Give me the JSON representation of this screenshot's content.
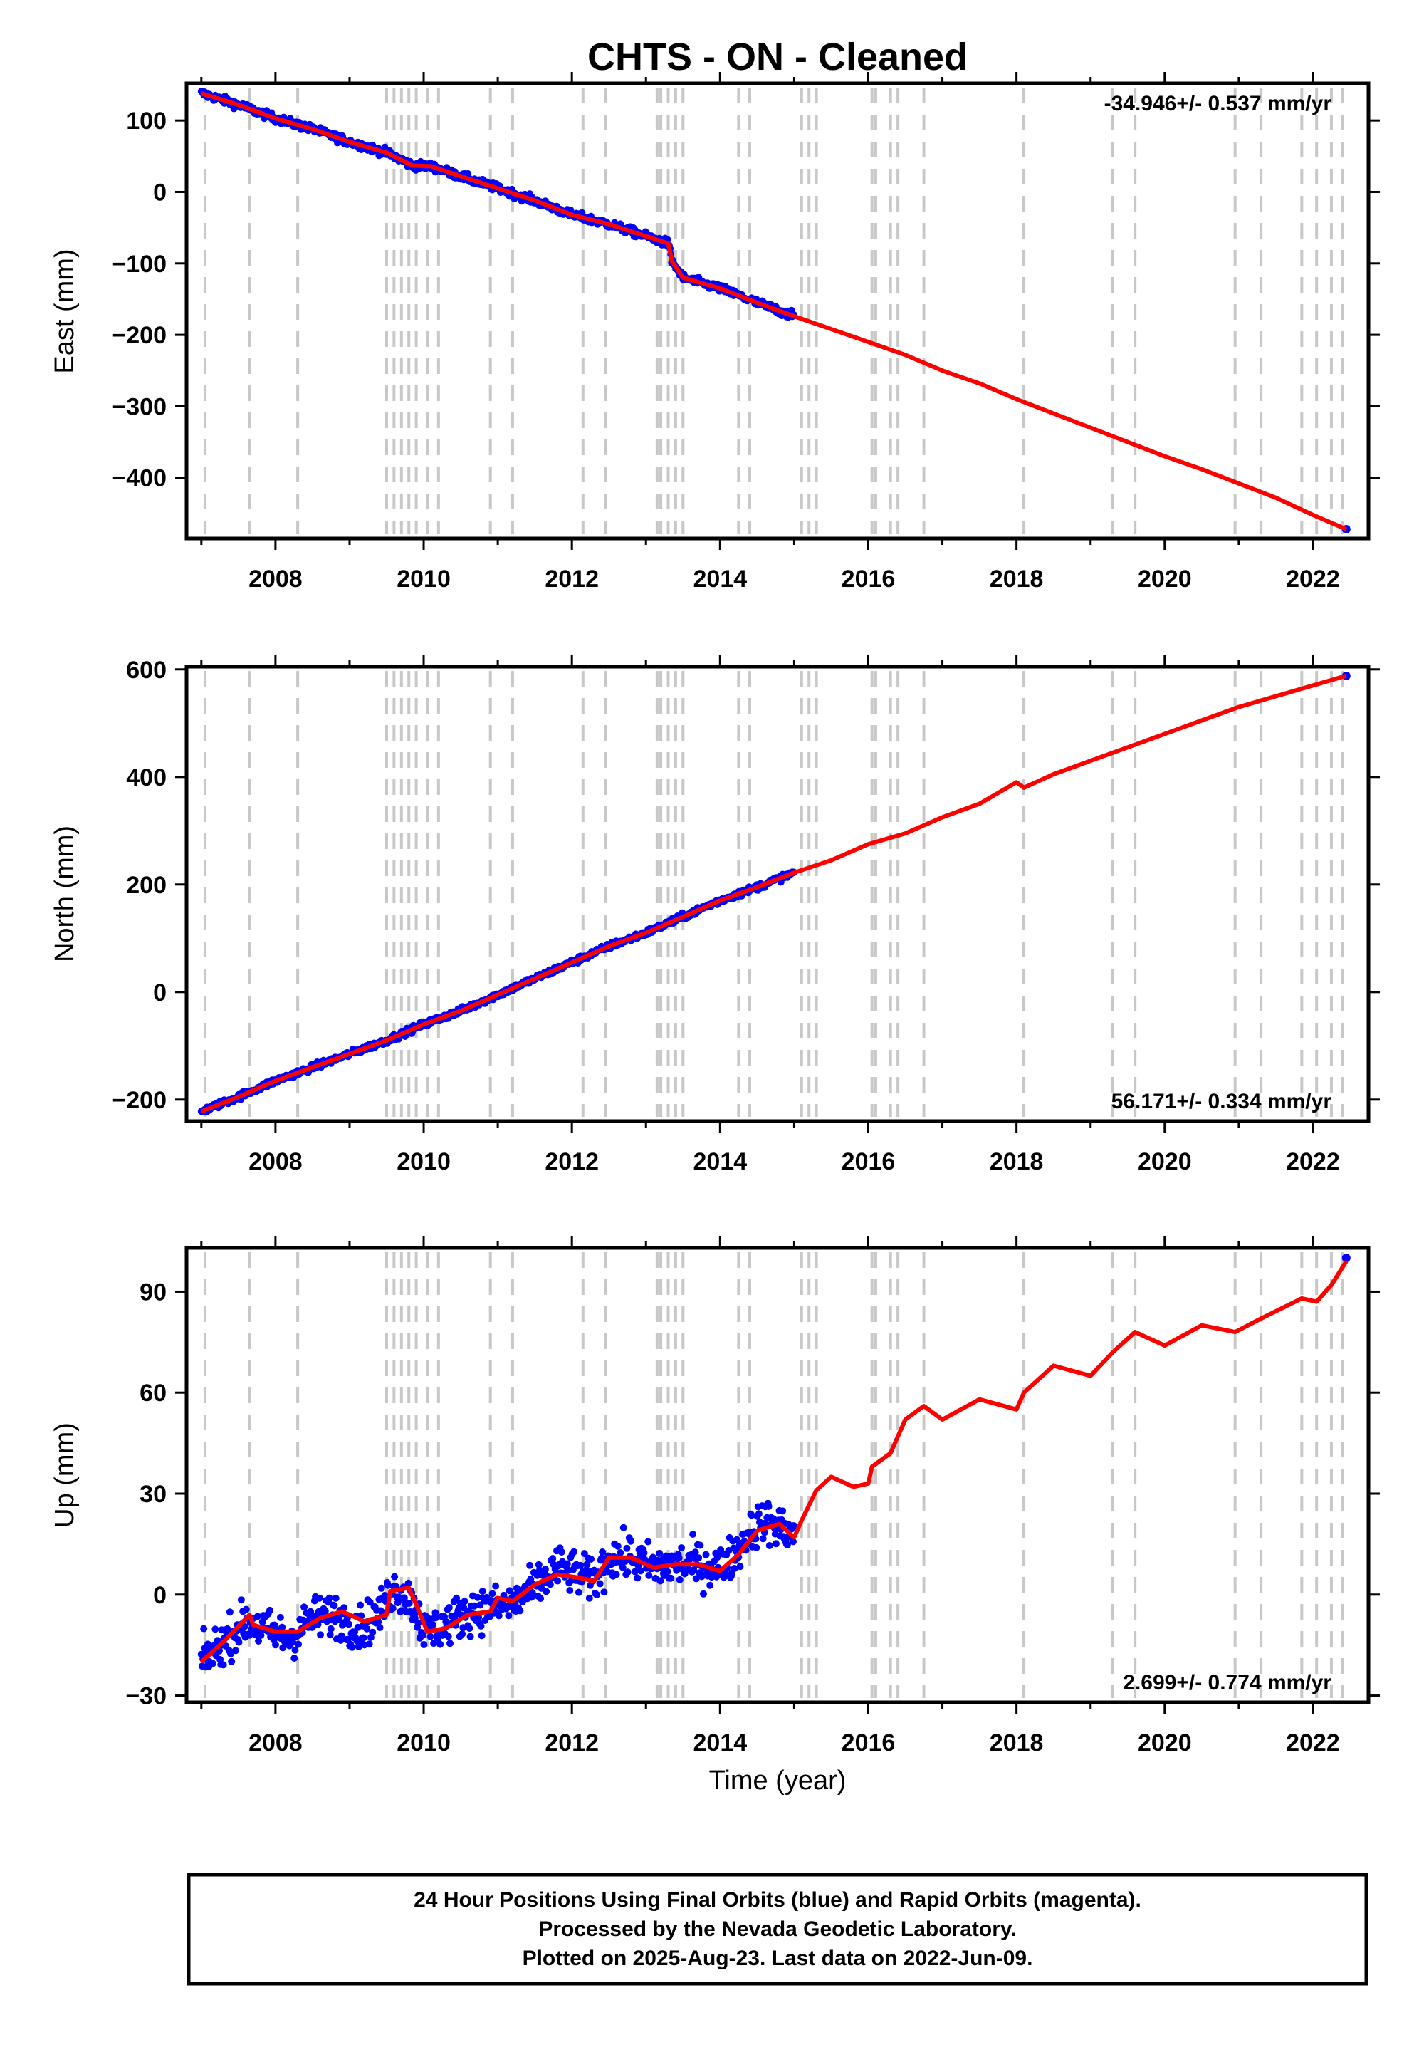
{
  "chart_title": "CHTS  - ON - Cleaned",
  "xlabel": "Time (year)",
  "caption": [
    "24 Hour Positions Using Final Orbits (blue) and Rapid Orbits (magenta).",
    "Processed by the Nevada Geodetic Laboratory.",
    "Plotted on 2025-Aug-23. Last data on 2022-Jun-09."
  ],
  "colors": {
    "final_orbits": "#0000ff",
    "model": "#ff0000",
    "steps": "#c8c8c8",
    "axes": "#000000"
  },
  "chart_data": [
    {
      "type": "scatter",
      "name": "east",
      "ylabel": "East (mm)",
      "rate": "-34.946+/- 0.537 mm/yr",
      "rate_position": "top-right",
      "xlim": [
        2006.8,
        2022.75
      ],
      "ylim": [
        -485,
        152
      ],
      "x_ticks": [
        2008,
        2010,
        2012,
        2014,
        2016,
        2018,
        2020,
        2022
      ],
      "y_ticks": [
        100,
        0,
        -100,
        -200,
        -300,
        -400
      ],
      "y_tick_labels": [
        "100",
        "0",
        "−100",
        "−200",
        "−300",
        "−400"
      ],
      "step_epochs": [
        2007.05,
        2007.65,
        2008.3,
        2009.5,
        2009.6,
        2009.7,
        2009.8,
        2009.9,
        2010.05,
        2010.2,
        2010.9,
        2011.2,
        2012.15,
        2012.45,
        2013.15,
        2013.2,
        2013.3,
        2013.4,
        2013.5,
        2014.25,
        2014.4,
        2015.1,
        2015.2,
        2015.3,
        2016.05,
        2016.1,
        2016.3,
        2016.4,
        2016.75,
        2018.1,
        2019.3,
        2019.6,
        2020.95,
        2021.3,
        2021.85,
        2022.05,
        2022.25,
        2022.4
      ],
      "series": [
        {
          "name": "daily",
          "x": [
            2007.0,
            2007.5,
            2008.0,
            2008.5,
            2009.0,
            2009.5,
            2009.85,
            2010.1,
            2010.5,
            2011.0,
            2011.5,
            2012.0,
            2012.5,
            2013.0,
            2013.3,
            2013.35,
            2013.5,
            2014.0,
            2014.5,
            2015.0,
            2022.45
          ],
          "y": [
            138,
            122,
            103,
            88,
            70,
            55,
            37,
            36,
            22,
            5,
            -12,
            -32,
            -45,
            -62,
            -72,
            -97,
            -120,
            -135,
            -155,
            -174,
            -472
          ]
        },
        {
          "name": "model",
          "x": [
            2007.0,
            2007.5,
            2008.0,
            2008.5,
            2009.0,
            2009.5,
            2009.85,
            2010.1,
            2010.5,
            2011.0,
            2011.5,
            2012.0,
            2012.5,
            2013.0,
            2013.3,
            2013.35,
            2013.5,
            2014.0,
            2014.5,
            2015.0,
            2015.5,
            2016.0,
            2016.5,
            2017.0,
            2017.5,
            2018.0,
            2018.5,
            2019.0,
            2019.5,
            2020.0,
            2020.5,
            2021.0,
            2021.5,
            2022.0,
            2022.45
          ],
          "y": [
            138,
            122,
            103,
            88,
            70,
            55,
            37,
            36,
            22,
            5,
            -12,
            -32,
            -45,
            -62,
            -72,
            -97,
            -120,
            -135,
            -155,
            -174,
            -192,
            -210,
            -228,
            -250,
            -268,
            -290,
            -310,
            -330,
            -350,
            -370,
            -388,
            -408,
            -428,
            -452,
            -472
          ]
        }
      ]
    },
    {
      "type": "scatter",
      "name": "north",
      "ylabel": "North (mm)",
      "rate": "56.171+/- 0.334 mm/yr",
      "rate_position": "bottom-right",
      "xlim": [
        2006.8,
        2022.75
      ],
      "ylim": [
        -240,
        605
      ],
      "x_ticks": [
        2008,
        2010,
        2012,
        2014,
        2016,
        2018,
        2020,
        2022
      ],
      "y_ticks": [
        600,
        400,
        200,
        0,
        -200
      ],
      "y_tick_labels": [
        "600",
        "400",
        "200",
        "0",
        "−200"
      ],
      "step_epochs": [
        2007.05,
        2007.65,
        2008.3,
        2009.5,
        2009.6,
        2009.7,
        2009.8,
        2009.9,
        2010.05,
        2010.2,
        2010.9,
        2011.2,
        2012.15,
        2012.45,
        2013.15,
        2013.2,
        2013.3,
        2013.4,
        2013.5,
        2014.25,
        2014.4,
        2015.1,
        2015.2,
        2015.3,
        2016.05,
        2016.1,
        2016.3,
        2016.4,
        2016.75,
        2018.1,
        2019.3,
        2019.6,
        2020.95,
        2021.3,
        2021.85,
        2022.05,
        2022.25,
        2022.4
      ],
      "series": [
        {
          "name": "daily",
          "x": [
            2007.0,
            2007.5,
            2008.0,
            2008.5,
            2009.0,
            2009.5,
            2010.0,
            2010.5,
            2011.0,
            2011.5,
            2012.0,
            2012.5,
            2013.0,
            2013.5,
            2014.0,
            2014.5,
            2015.0,
            2022.45
          ],
          "y": [
            -222,
            -195,
            -165,
            -140,
            -115,
            -90,
            -60,
            -35,
            -5,
            25,
            55,
            85,
            110,
            140,
            170,
            195,
            222,
            588
          ]
        },
        {
          "name": "model",
          "x": [
            2007.0,
            2007.5,
            2008.0,
            2008.5,
            2009.0,
            2009.5,
            2010.0,
            2010.5,
            2011.0,
            2011.5,
            2012.0,
            2012.5,
            2013.0,
            2013.5,
            2014.0,
            2014.5,
            2015.0,
            2015.5,
            2016.0,
            2016.5,
            2017.0,
            2017.5,
            2018.0,
            2018.1,
            2018.5,
            2019.0,
            2019.5,
            2020.0,
            2020.5,
            2021.0,
            2021.5,
            2022.0,
            2022.45
          ],
          "y": [
            -222,
            -195,
            -165,
            -140,
            -115,
            -90,
            -60,
            -35,
            -5,
            25,
            55,
            85,
            110,
            140,
            170,
            195,
            222,
            245,
            275,
            295,
            325,
            350,
            390,
            380,
            405,
            430,
            455,
            480,
            505,
            530,
            550,
            570,
            588
          ]
        }
      ]
    },
    {
      "type": "scatter",
      "name": "up",
      "ylabel": "Up (mm)",
      "rate": "2.699+/- 0.774 mm/yr",
      "rate_position": "bottom-right",
      "xlim": [
        2006.8,
        2022.75
      ],
      "ylim": [
        -32,
        103
      ],
      "x_ticks": [
        2008,
        2010,
        2012,
        2014,
        2016,
        2018,
        2020,
        2022
      ],
      "y_ticks": [
        90,
        60,
        30,
        0,
        -30
      ],
      "y_tick_labels": [
        "90",
        "60",
        "30",
        "0",
        "−30"
      ],
      "step_epochs": [
        2007.05,
        2007.65,
        2008.3,
        2009.5,
        2009.6,
        2009.7,
        2009.8,
        2009.9,
        2010.05,
        2010.2,
        2010.9,
        2011.2,
        2012.15,
        2012.45,
        2013.15,
        2013.2,
        2013.3,
        2013.4,
        2013.5,
        2014.25,
        2014.4,
        2015.1,
        2015.2,
        2015.3,
        2016.05,
        2016.1,
        2016.3,
        2016.4,
        2016.75,
        2018.1,
        2019.3,
        2019.6,
        2020.95,
        2021.3,
        2021.85,
        2022.05,
        2022.25,
        2022.4
      ],
      "series": [
        {
          "name": "daily",
          "x": [
            2007.0,
            2007.3,
            2007.6,
            2007.9,
            2008.2,
            2008.5,
            2008.8,
            2009.1,
            2009.4,
            2009.6,
            2009.85,
            2010.0,
            2010.3,
            2010.6,
            2010.9,
            2011.2,
            2011.5,
            2011.8,
            2012.1,
            2012.3,
            2012.5,
            2012.8,
            2013.1,
            2013.4,
            2013.7,
            2014.0,
            2014.2,
            2014.4,
            2014.6,
            2014.8,
            2015.0,
            2022.45
          ],
          "y": [
            -20,
            -14,
            -8,
            -11,
            -13,
            -7,
            -6,
            -10,
            -6,
            2,
            -2,
            -11,
            -9,
            -5,
            -4,
            -3,
            2,
            8,
            6,
            4,
            11,
            11,
            8,
            9,
            9,
            8,
            12,
            19,
            22,
            20,
            18,
            100
          ]
        },
        {
          "name": "model",
          "x": [
            2007.0,
            2007.3,
            2007.65,
            2007.7,
            2008.0,
            2008.3,
            2008.6,
            2008.9,
            2009.2,
            2009.5,
            2009.55,
            2009.8,
            2009.9,
            2010.05,
            2010.3,
            2010.6,
            2010.9,
            2011.0,
            2011.2,
            2011.5,
            2011.8,
            2012.1,
            2012.3,
            2012.5,
            2012.8,
            2013.1,
            2013.4,
            2013.7,
            2014.0,
            2014.25,
            2014.5,
            2014.8,
            2015.0,
            2015.1,
            2015.3,
            2015.5,
            2015.8,
            2016.0,
            2016.05,
            2016.3,
            2016.5,
            2016.75,
            2017.0,
            2017.5,
            2018.0,
            2018.1,
            2018.5,
            2019.0,
            2019.3,
            2019.6,
            2020.0,
            2020.5,
            2020.95,
            2021.3,
            2021.85,
            2022.05,
            2022.25,
            2022.45
          ],
          "y": [
            -20,
            -14,
            -6,
            -9,
            -11,
            -11,
            -7,
            -5,
            -8,
            -6,
            1,
            2,
            -3,
            -11,
            -10,
            -6,
            -5,
            -1,
            -2,
            3,
            6,
            5,
            4,
            11,
            11,
            8,
            9,
            9,
            7,
            12,
            19,
            21,
            17,
            22,
            31,
            35,
            32,
            33,
            38,
            42,
            52,
            56,
            52,
            58,
            55,
            60,
            68,
            65,
            72,
            78,
            74,
            80,
            78,
            82,
            88,
            87,
            92,
            99
          ]
        }
      ]
    }
  ]
}
